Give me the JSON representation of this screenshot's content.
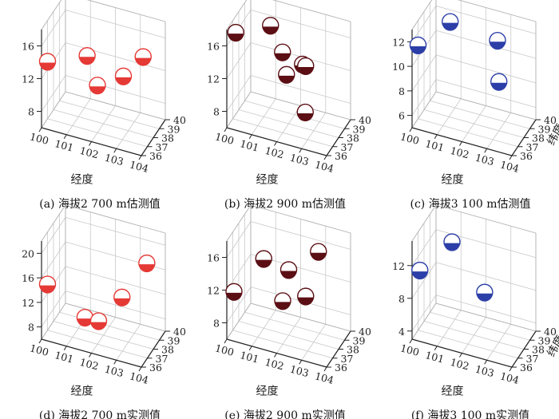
{
  "chart_data": [
    {
      "type": "scatter",
      "caption": "(a) 海拔2 700 m估测值",
      "x_ticks": [
        "100",
        "101",
        "102",
        "103",
        "104"
      ],
      "y_ticks": [
        "36",
        "37",
        "38",
        "39",
        "40"
      ],
      "z_ticks": [
        "8",
        "12",
        "16"
      ],
      "zlim": [
        6,
        18
      ],
      "xlabel": "经度",
      "ylabel": "",
      "color": "#e53935",
      "points": [
        {
          "x": 100.0,
          "y": 37.0,
          "z": 13.0
        },
        {
          "x": 101.3,
          "y": 38.2,
          "z": 13.5
        },
        {
          "x": 102.0,
          "y": 37.0,
          "z": 11.8
        },
        {
          "x": 102.8,
          "y": 38.0,
          "z": 12.5
        },
        {
          "x": 103.4,
          "y": 38.8,
          "z": 14.5
        }
      ]
    },
    {
      "type": "scatter",
      "caption": "(b) 海拔2 900 m估测值",
      "x_ticks": [
        "100",
        "101",
        "102",
        "103",
        "104"
      ],
      "y_ticks": [
        "36",
        "37",
        "38",
        "39",
        "40"
      ],
      "z_ticks": [
        "8",
        "12",
        "16"
      ],
      "zlim": [
        6,
        18
      ],
      "xlabel": "经度",
      "ylabel": "",
      "color": "#5b0f14",
      "points": [
        {
          "x": 100.0,
          "y": 37.5,
          "z": 16.0
        },
        {
          "x": 101.2,
          "y": 38.3,
          "z": 17.0
        },
        {
          "x": 101.8,
          "y": 37.8,
          "z": 14.8
        },
        {
          "x": 102.2,
          "y": 36.8,
          "z": 13.5
        },
        {
          "x": 102.6,
          "y": 37.8,
          "z": 14.0
        },
        {
          "x": 102.8,
          "y": 37.5,
          "z": 14.3
        },
        {
          "x": 103.0,
          "y": 36.6,
          "z": 9.8
        }
      ]
    },
    {
      "type": "scatter",
      "caption": "(c) 海拔3 100 m估测值",
      "x_ticks": [
        "100",
        "101",
        "102",
        "103",
        "104"
      ],
      "y_ticks": [
        "36",
        "37",
        "38",
        "39",
        "40"
      ],
      "z_ticks": [
        "6",
        "8",
        "10",
        "12"
      ],
      "zlim": [
        5,
        13
      ],
      "xlabel": "经度",
      "ylabel": "纬度",
      "color": "#2c3fa8",
      "points": [
        {
          "x": 100.0,
          "y": 37.0,
          "z": 11.0
        },
        {
          "x": 101.0,
          "y": 38.2,
          "z": 12.6
        },
        {
          "x": 102.8,
          "y": 38.6,
          "z": 11.8
        },
        {
          "x": 103.0,
          "y": 38.0,
          "z": 9.0
        }
      ]
    },
    {
      "type": "scatter",
      "caption": "(d) 海拔2 700 m实测值",
      "x_ticks": [
        "100",
        "101",
        "102",
        "103",
        "104"
      ],
      "y_ticks": [
        "36",
        "37",
        "38",
        "39",
        "40"
      ],
      "z_ticks": [
        "8",
        "12",
        "16",
        "20"
      ],
      "zlim": [
        6,
        22
      ],
      "xlabel": "经度",
      "ylabel": "",
      "color": "#e53935",
      "points": [
        {
          "x": 100.0,
          "y": 37.0,
          "z": 13.5
        },
        {
          "x": 101.5,
          "y": 37.0,
          "z": 9.8
        },
        {
          "x": 102.0,
          "y": 37.2,
          "z": 9.5
        },
        {
          "x": 102.6,
          "y": 38.6,
          "z": 12.0
        },
        {
          "x": 103.5,
          "y": 39.0,
          "z": 18.0
        }
      ]
    },
    {
      "type": "scatter",
      "caption": "(e) 海拔2 900 m实测值",
      "x_ticks": [
        "100",
        "101",
        "102",
        "103",
        "104"
      ],
      "y_ticks": [
        "36",
        "37",
        "38",
        "39",
        "40"
      ],
      "z_ticks": [
        "8",
        "12",
        "16"
      ],
      "zlim": [
        6,
        18
      ],
      "xlabel": "经度",
      "ylabel": "",
      "color": "#5b0f14",
      "points": [
        {
          "x": 100.0,
          "y": 37.2,
          "z": 10.5
        },
        {
          "x": 101.0,
          "y": 38.0,
          "z": 14.5
        },
        {
          "x": 102.0,
          "y": 38.0,
          "z": 14.0
        },
        {
          "x": 102.0,
          "y": 37.0,
          "z": 11.3
        },
        {
          "x": 102.8,
          "y": 37.5,
          "z": 12.0
        },
        {
          "x": 103.0,
          "y": 38.8,
          "z": 16.2
        }
      ]
    },
    {
      "type": "scatter",
      "caption": "(f) 海拔3 100 m实测值",
      "x_ticks": [
        "100",
        "101",
        "102",
        "103",
        "104"
      ],
      "y_ticks": [
        "36",
        "37",
        "38",
        "39",
        "40"
      ],
      "z_ticks": [
        "4",
        "8",
        "12"
      ],
      "zlim": [
        3,
        15
      ],
      "xlabel": "经度",
      "ylabel": "纬度",
      "color": "#2c3fa8",
      "points": [
        {
          "x": 100.0,
          "y": 37.3,
          "z": 10.0
        },
        {
          "x": 101.0,
          "y": 38.5,
          "z": 13.0
        },
        {
          "x": 102.5,
          "y": 37.7,
          "z": 9.0
        }
      ]
    }
  ]
}
